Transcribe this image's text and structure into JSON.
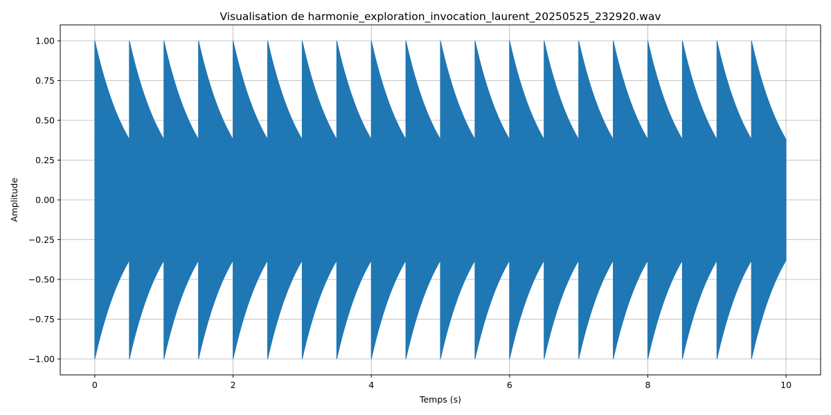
{
  "chart_data": {
    "type": "area",
    "title": "Visualisation de harmonie_exploration_invocation_laurent_20250525_232920.wav",
    "xlabel": "Temps (s)",
    "ylabel": "Amplitude",
    "xlim": [
      -0.5,
      10.5
    ],
    "ylim": [
      -1.1,
      1.1
    ],
    "x_ticks": [
      0,
      2,
      4,
      6,
      8,
      10
    ],
    "x_tick_labels": [
      "0",
      "2",
      "4",
      "6",
      "8",
      "10"
    ],
    "y_ticks": [
      -1.0,
      -0.75,
      -0.5,
      -0.25,
      0.0,
      0.25,
      0.5,
      0.75,
      1.0
    ],
    "y_tick_labels": [
      "−1.00",
      "−0.75",
      "−0.50",
      "−0.25",
      "0.00",
      "0.25",
      "0.50",
      "0.75",
      "1.00"
    ],
    "grid": true,
    "series": [
      {
        "color": "#1f77b4",
        "pulse_starts": [
          0,
          0.5,
          1,
          1.5,
          2,
          2.5,
          3,
          3.5,
          4,
          4.5,
          5,
          5.5,
          6,
          6.5,
          7,
          7.5,
          8,
          8.5,
          9,
          9.5
        ],
        "pulse_duration": 0.5,
        "envelope_peak": 1.0,
        "envelope_end": 0.38,
        "end_time": 10
      }
    ]
  }
}
